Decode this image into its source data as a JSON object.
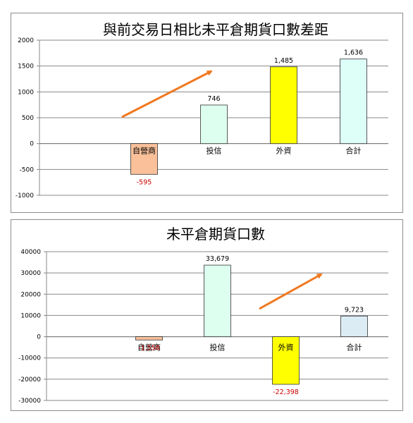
{
  "chart_data": [
    {
      "type": "bar",
      "title": "與前交易日相比未平倉期貨口數差距",
      "categories": [
        "自營商",
        "投信",
        "外資",
        "合計"
      ],
      "values": [
        -595,
        746,
        1485,
        1636
      ],
      "value_labels": [
        "-595",
        "746",
        "1,485",
        "1,636"
      ],
      "bar_colors": [
        "#f9c09a",
        "#ddfff0",
        "#ffff00",
        "#ddfff8"
      ],
      "label_colors": [
        "#cc0000",
        "#000000",
        "#000000",
        "#000000"
      ],
      "ylim": [
        -1000,
        2000
      ],
      "yticks": [
        2000,
        1500,
        1000,
        500,
        0,
        -500,
        -1000
      ],
      "ytick_labels": [
        "2000",
        "1500",
        "1000",
        "500",
        "0",
        "-500",
        "-1000"
      ],
      "grid": true,
      "arrow_color": "#f07820"
    },
    {
      "type": "bar",
      "title": "未平倉期貨口數",
      "categories": [
        "自營商",
        "投信",
        "外資",
        "合計"
      ],
      "values": [
        -1558,
        33679,
        -22398,
        9723
      ],
      "value_labels": [
        "-1,558",
        "33,679",
        "-22,398",
        "9,723"
      ],
      "bar_colors": [
        "#f9c09a",
        "#ddfff0",
        "#ffff00",
        "#dcecf5"
      ],
      "label_colors": [
        "#cc0000",
        "#000000",
        "#cc0000",
        "#000000"
      ],
      "ylim": [
        -30000,
        40000
      ],
      "yticks": [
        40000,
        30000,
        20000,
        10000,
        0,
        -10000,
        -20000,
        -30000
      ],
      "ytick_labels": [
        "40000",
        "30000",
        "20000",
        "10000",
        "0",
        "-10000",
        "-20000",
        "-30000"
      ],
      "grid": true,
      "arrow_color": "#f07820"
    }
  ]
}
